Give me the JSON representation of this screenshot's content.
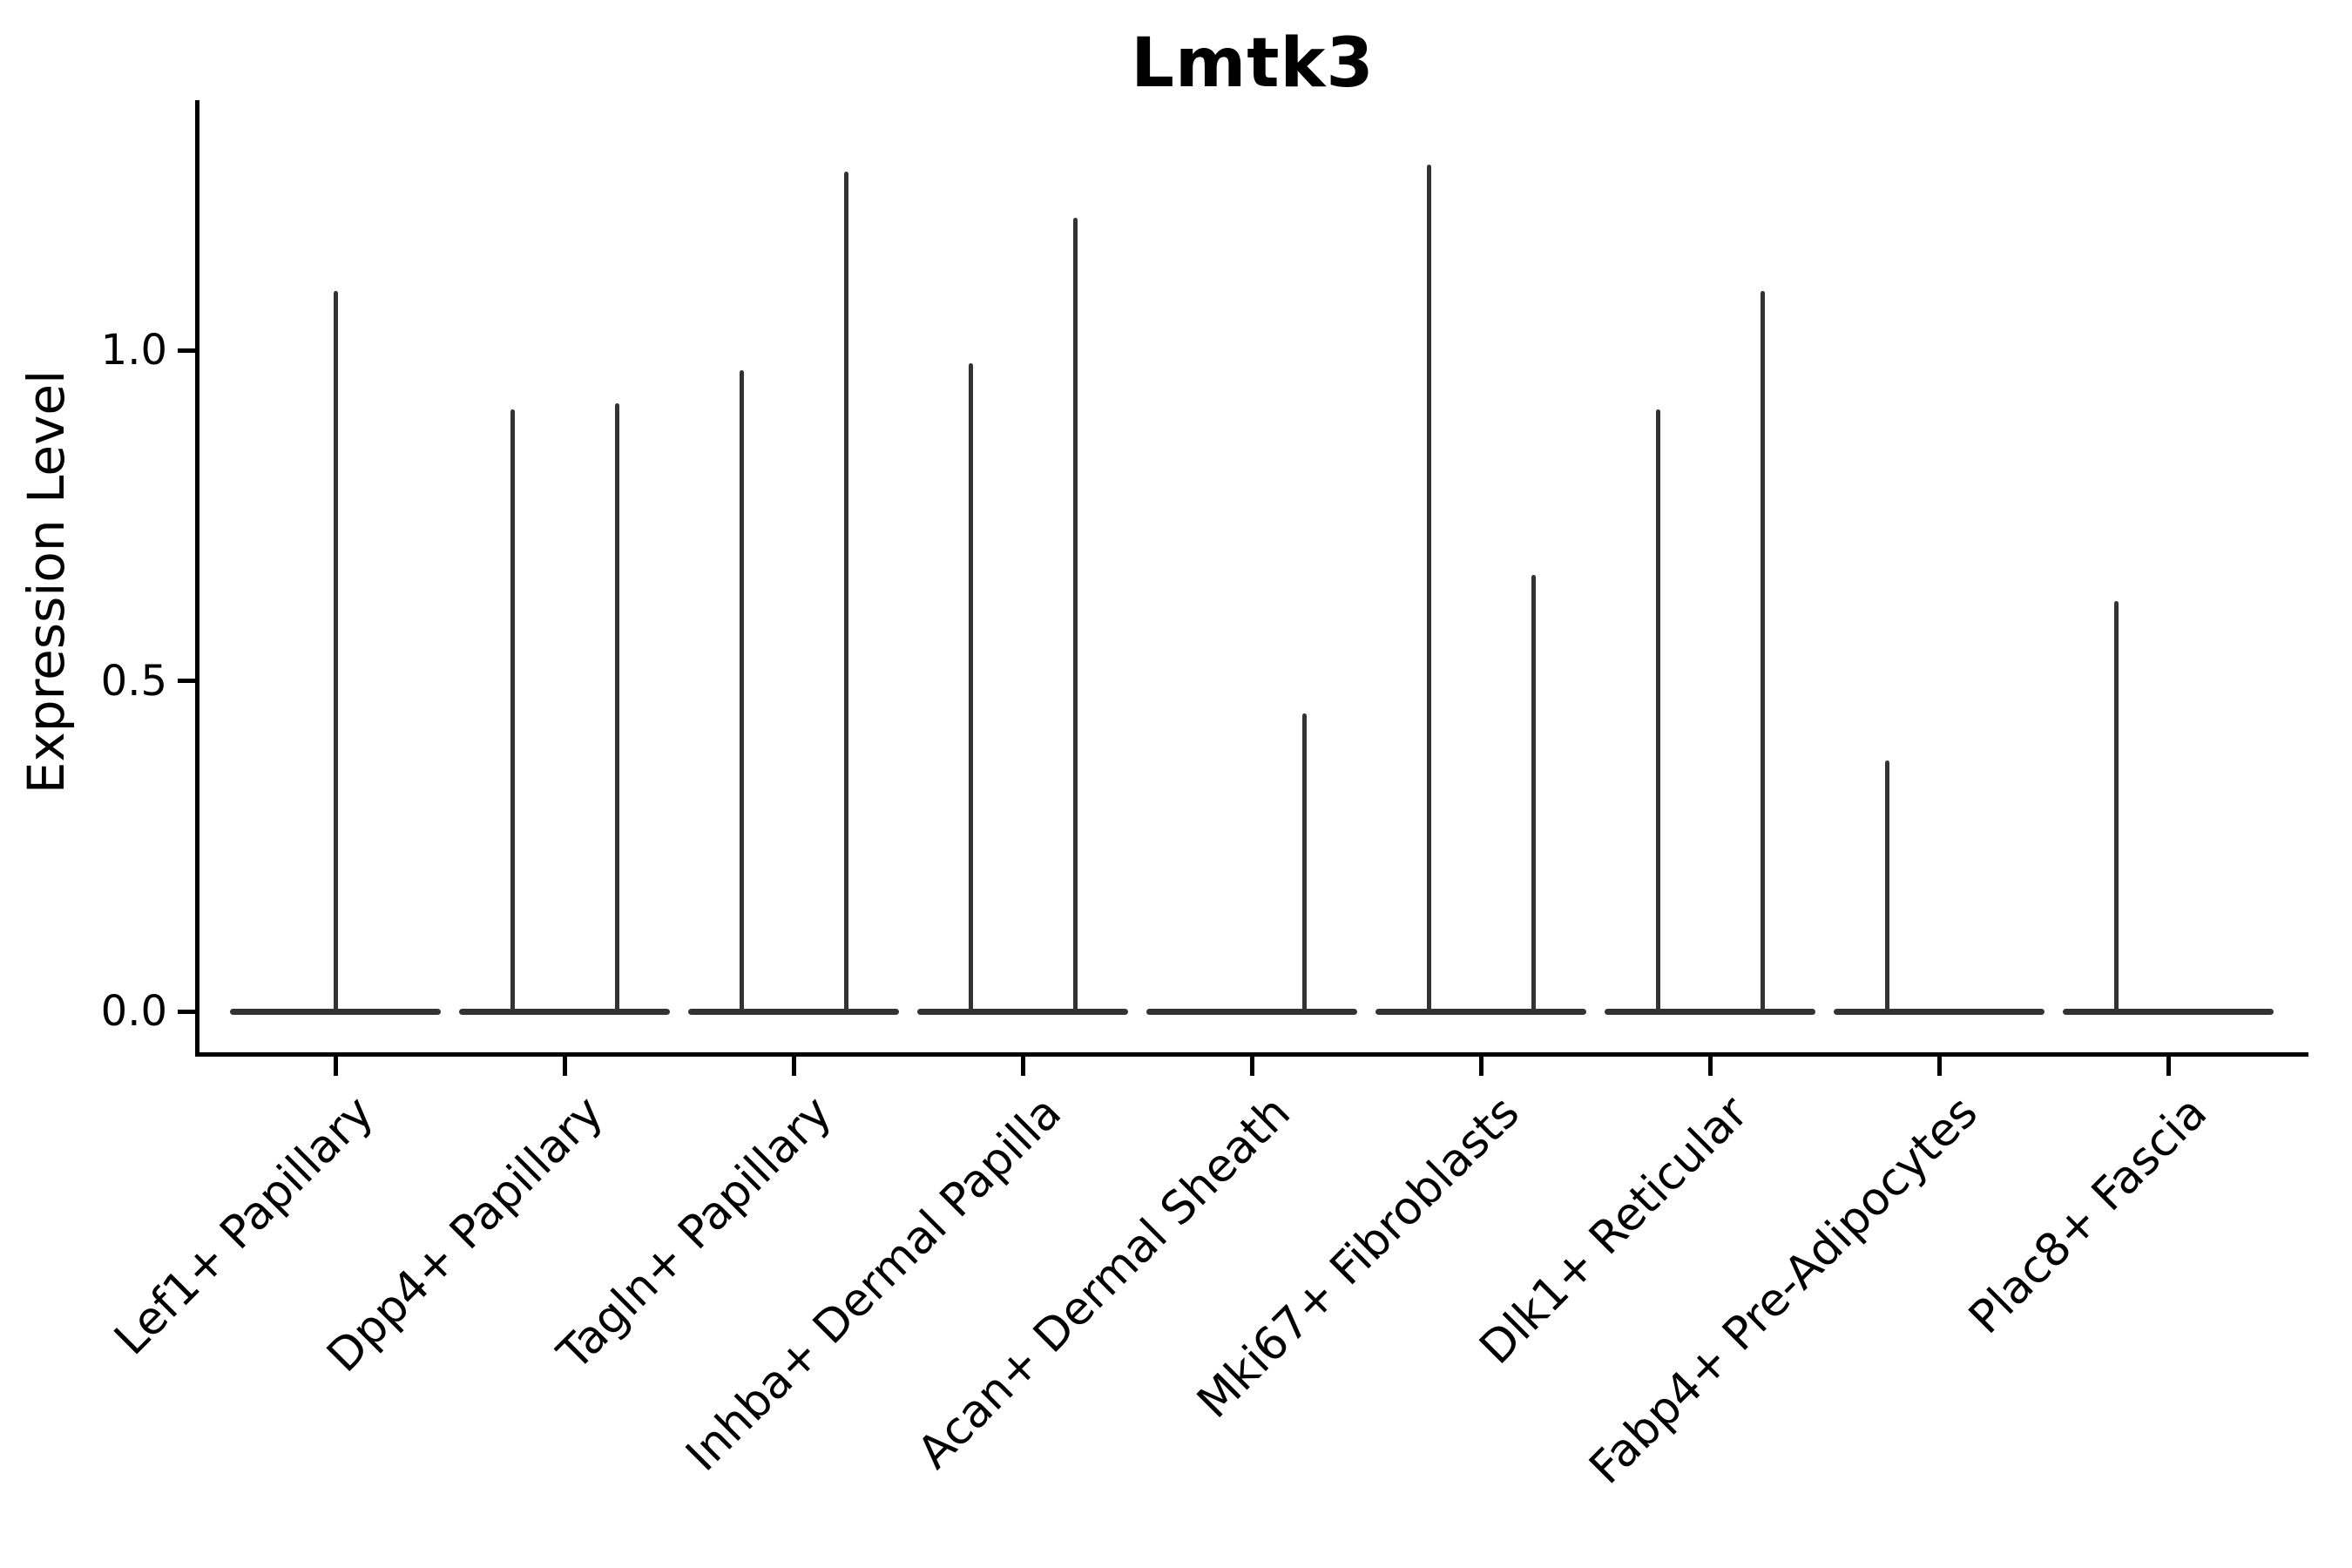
{
  "title": "Lmtk3",
  "axes": {
    "y_label": "Expression Level",
    "y_ticks": [
      {
        "label": "0.0",
        "value": 0.0
      },
      {
        "label": "0.5",
        "value": 0.5
      },
      {
        "label": "1.0",
        "value": 1.0
      }
    ]
  },
  "colors": {
    "violin": "#333333",
    "axis": "#000000",
    "text": "#000000",
    "background": "#ffffff"
  },
  "chart_data": {
    "type": "violin",
    "title": "Lmtk3",
    "xlabel": "",
    "ylabel": "Expression Level",
    "ylim": [
      -0.06,
      1.37
    ],
    "y_ticks": [
      0.0,
      0.5,
      1.0
    ],
    "grid": false,
    "legend": "none",
    "shape_note": "each violin is a flat base at expression 0 with a thin vertical spike up to its peak value",
    "categories": [
      "Lef1+ Papillary",
      "Dpp4+ Papillary",
      "Tagln+ Papillary",
      "Inhba+ Dermal Papilla",
      "Acan+ Dermal Sheath",
      "Mki67+ Fibroblasts",
      "Dlk1+ Reticular",
      "Fabp4+ Pre-Adipocytes",
      "Plac8+ Fascia"
    ],
    "violins": [
      {
        "category": "Lef1+ Papillary",
        "spikes": [
          {
            "position": "center",
            "peak": 1.09
          }
        ]
      },
      {
        "category": "Dpp4+ Papillary",
        "spikes": [
          {
            "position": "left",
            "peak": 0.91
          },
          {
            "position": "right",
            "peak": 0.92
          }
        ]
      },
      {
        "category": "Tagln+ Papillary",
        "spikes": [
          {
            "position": "left",
            "peak": 0.97
          },
          {
            "position": "right",
            "peak": 1.27
          }
        ]
      },
      {
        "category": "Inhba+ Dermal Papilla",
        "spikes": [
          {
            "position": "left",
            "peak": 0.98
          },
          {
            "position": "right",
            "peak": 1.2
          }
        ]
      },
      {
        "category": "Acan+ Dermal Sheath",
        "spikes": [
          {
            "position": "right",
            "peak": 0.45
          }
        ]
      },
      {
        "category": "Mki67+ Fibroblasts",
        "spikes": [
          {
            "position": "left",
            "peak": 1.28
          },
          {
            "position": "right",
            "peak": 0.66
          }
        ]
      },
      {
        "category": "Dlk1+ Reticular",
        "spikes": [
          {
            "position": "left",
            "peak": 0.91
          },
          {
            "position": "right",
            "peak": 1.09
          }
        ]
      },
      {
        "category": "Fabp4+ Pre-Adipocytes",
        "spikes": [
          {
            "position": "left",
            "peak": 0.38
          }
        ]
      },
      {
        "category": "Plac8+ Fascia",
        "spikes": [
          {
            "position": "left",
            "peak": 0.62
          }
        ]
      }
    ]
  }
}
